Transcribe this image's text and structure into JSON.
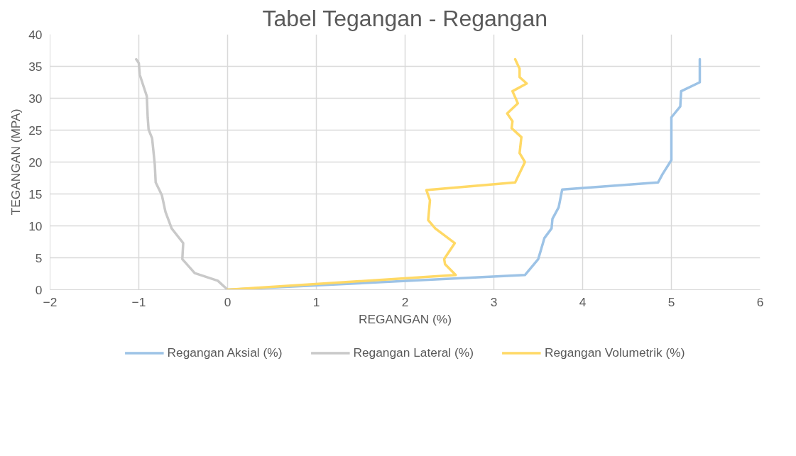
{
  "chart_data": {
    "type": "line",
    "title": "Tabel Tegangan - Regangan",
    "xlabel": "REGANGAN (%)",
    "ylabel": "TEGANGAN (MPA)",
    "xlim": [
      -2,
      6
    ],
    "xticks": [
      -2,
      -1,
      0,
      1,
      2,
      3,
      4,
      5,
      6
    ],
    "ylim": [
      0,
      40
    ],
    "yticks": [
      0,
      5,
      10,
      15,
      20,
      25,
      30,
      35,
      40
    ],
    "grid": true,
    "legend": "bottom",
    "marker": "none",
    "line_style": "solid",
    "series": [
      {
        "name": "Regangan Aksial (%)",
        "color": "#9dc3e6",
        "x": [
          0,
          3.35,
          3.5,
          3.57,
          3.65,
          3.66,
          3.73,
          3.76,
          3.77,
          4.85,
          4.9,
          5.0,
          5.0,
          5.1,
          5.11,
          5.32,
          5.32,
          5.32
        ],
        "values": [
          0,
          2.3,
          4.8,
          8.1,
          9.6,
          11.1,
          12.9,
          15.0,
          15.7,
          16.8,
          18.1,
          20.3,
          27.0,
          28.7,
          31.1,
          32.5,
          33.3,
          36.1
        ]
      },
      {
        "name": "Regangan Lateral (%)",
        "color": "#c9c9c9",
        "x": [
          0,
          -0.11,
          -0.37,
          -0.51,
          -0.5,
          -0.63,
          -0.7,
          -0.74,
          -0.81,
          -0.82,
          -0.85,
          -0.89,
          -0.9,
          -0.91,
          -0.99,
          -1.0,
          -1.03
        ],
        "values": [
          0,
          1.4,
          2.6,
          4.8,
          7.3,
          9.6,
          12.2,
          14.8,
          16.8,
          19.6,
          23.7,
          25.1,
          27.0,
          30.3,
          33.7,
          35.5,
          36.1
        ]
      },
      {
        "name": "Regangan Volumetrik (%)",
        "color": "#ffd966",
        "x": [
          0,
          2.57,
          2.45,
          2.44,
          2.56,
          2.34,
          2.26,
          2.28,
          2.24,
          3.24,
          3.35,
          3.29,
          3.31,
          3.2,
          3.21,
          3.15,
          3.27,
          3.21,
          3.37,
          3.29,
          3.29,
          3.24
        ],
        "values": [
          0,
          2.3,
          4.0,
          4.8,
          7.3,
          9.6,
          10.9,
          14.0,
          15.6,
          16.8,
          20.0,
          21.4,
          23.9,
          25.3,
          26.4,
          27.6,
          29.2,
          31.1,
          32.3,
          33.3,
          34.6,
          36.1
        ]
      }
    ]
  }
}
